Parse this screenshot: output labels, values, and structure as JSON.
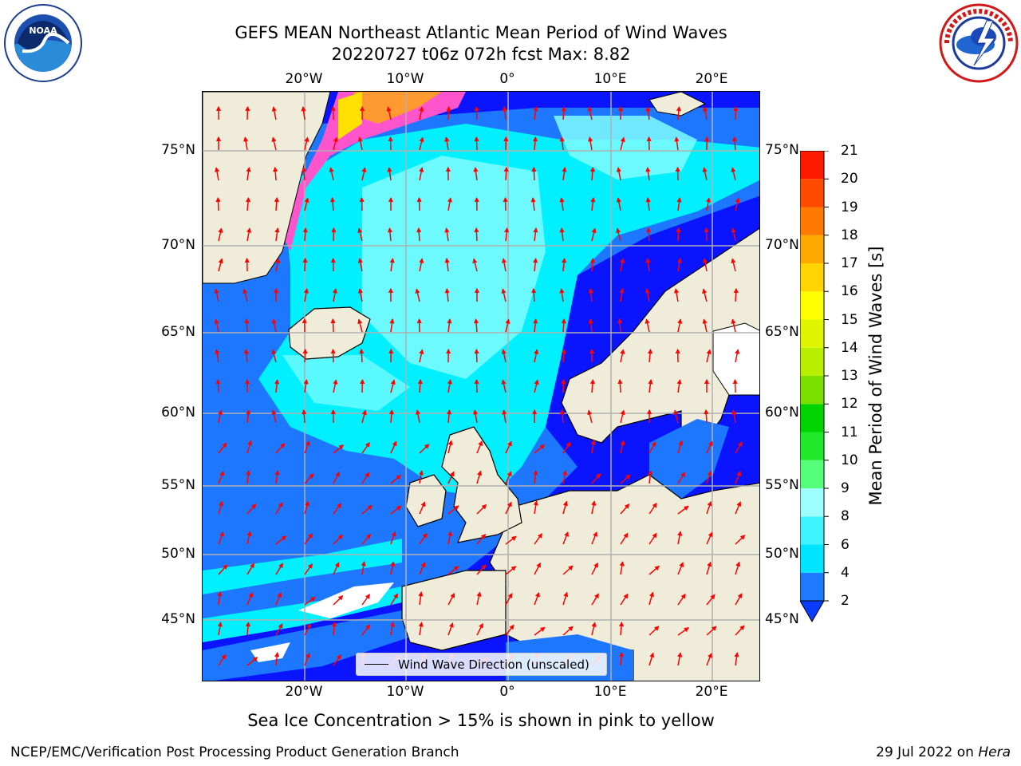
{
  "title": {
    "line1": "GEFS MEAN Northeast Atlantic Mean Period of Wind Waves",
    "line2": "20220727 t06z 072h fcst   Max: 8.82"
  },
  "logos": {
    "left": "noaa-logo",
    "right": "nws-logo"
  },
  "axes": {
    "lon_ticks": [
      "20°W",
      "10°W",
      "0°",
      "10°E",
      "20°E"
    ],
    "lat_ticks": [
      "75°N",
      "70°N",
      "65°N",
      "60°N",
      "55°N",
      "50°N",
      "45°N"
    ]
  },
  "legend": {
    "label": "Wind Wave Direction (unscaled)"
  },
  "colorbar": {
    "label": "Mean Period of Wind Waves [s]",
    "ticks": [
      "2",
      "4",
      "6",
      "8",
      "9",
      "10",
      "11",
      "12",
      "13",
      "14",
      "15",
      "16",
      "17",
      "18",
      "19",
      "20",
      "21"
    ],
    "colors": [
      "#0a3cff",
      "#1e7bff",
      "#00e5ff",
      "#3ff3ff",
      "#9effff",
      "#55ff7a",
      "#22e82c",
      "#00d400",
      "#7be000",
      "#b8ef00",
      "#dff500",
      "#ffff00",
      "#ffd400",
      "#ffa800",
      "#ff7a00",
      "#ff4b00",
      "#ff1a00",
      "#ff0000"
    ]
  },
  "subtitle": "Sea Ice Concentration > 15% is shown in pink to yellow",
  "footer": {
    "left": "NCEP/EMC/Verification Post Processing Product Generation Branch",
    "right_date": "29 Jul 2022 on ",
    "right_host": "Hera"
  },
  "map_colors": {
    "deep_blue": "#0a14ff",
    "mid_blue": "#1e78ff",
    "cyan": "#00f0ff",
    "light_cyan": "#7ffcff",
    "land": "#efecd9",
    "arrow": "#ff0000",
    "ice_pink": "#ff55cc",
    "ice_yellow": "#ffe000",
    "ice_orange": "#ff9a30"
  }
}
